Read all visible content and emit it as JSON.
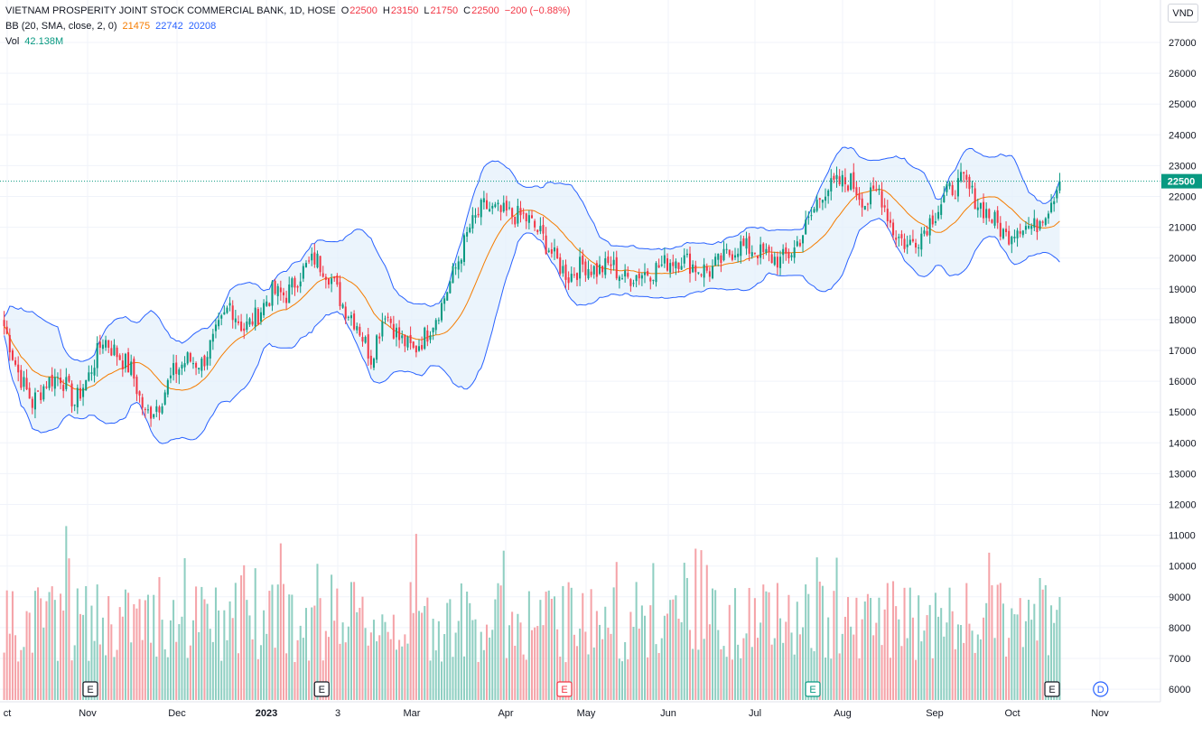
{
  "legend": {
    "symbol_line": "VIETNAM PROSPERITY JOINT STOCK COMMERCIAL BANK, 1D, HOSE",
    "o_label": "O",
    "o_value": "22500",
    "h_label": "H",
    "h_value": "23150",
    "l_label": "L",
    "l_value": "21750",
    "c_label": "C",
    "c_value": "22500",
    "change": "−200 (−0.88%)",
    "bb_label": "BB (20, SMA, close, 2, 0)",
    "bb_basis": "21475",
    "bb_upper": "22742",
    "bb_lower": "20208",
    "vol_label": "Vol",
    "vol_value": "42.138M"
  },
  "currency": "VND",
  "last_price_label": "22500",
  "colors": {
    "up": "#089981",
    "down": "#f23645",
    "basis": "#f57c00",
    "band": "#2962ff",
    "band_fill": "#e3f0fb",
    "vol_up": "#8fcfc2",
    "vol_down": "#f5a3a8"
  },
  "chart_data": {
    "type": "candlestick",
    "y_axis_ticks": [
      "27000",
      "26000",
      "25000",
      "24000",
      "23000",
      "22000",
      "21000",
      "20000",
      "19000",
      "18000",
      "17000",
      "16000",
      "15000",
      "14000",
      "13000",
      "12000",
      "11000",
      "10000",
      "9000",
      "8000",
      "7000",
      "6000"
    ],
    "x_axis_labels": [
      {
        "label": "ct",
        "bold": false
      },
      {
        "label": "Nov",
        "bold": false
      },
      {
        "label": "Dec",
        "bold": false
      },
      {
        "label": "2023",
        "bold": true
      },
      {
        "label": "3",
        "bold": false
      },
      {
        "label": "Mar",
        "bold": false
      },
      {
        "label": "Apr",
        "bold": false
      },
      {
        "label": "May",
        "bold": false
      },
      {
        "label": "Jun",
        "bold": false
      },
      {
        "label": "Jul",
        "bold": false
      },
      {
        "label": "Aug",
        "bold": false
      },
      {
        "label": "Sep",
        "bold": false
      },
      {
        "label": "Oct",
        "bold": false
      },
      {
        "label": "Nov",
        "bold": false
      }
    ],
    "last_price": 22500,
    "price_range": [
      13000,
      27000
    ],
    "close_anchors": [
      [
        0,
        17800
      ],
      [
        5,
        16300
      ],
      [
        10,
        15300
      ],
      [
        15,
        16000
      ],
      [
        20,
        16200
      ],
      [
        25,
        15300
      ],
      [
        30,
        16200
      ],
      [
        35,
        17400
      ],
      [
        40,
        16900
      ],
      [
        45,
        16400
      ],
      [
        50,
        14900
      ],
      [
        55,
        15300
      ],
      [
        60,
        16300
      ],
      [
        65,
        16700
      ],
      [
        70,
        16600
      ],
      [
        75,
        17500
      ],
      [
        80,
        18500
      ],
      [
        85,
        17700
      ],
      [
        90,
        18200
      ],
      [
        95,
        18900
      ],
      [
        100,
        18800
      ],
      [
        105,
        19500
      ],
      [
        110,
        20000
      ],
      [
        115,
        19500
      ],
      [
        120,
        18500
      ],
      [
        125,
        17900
      ],
      [
        130,
        16800
      ],
      [
        135,
        18300
      ],
      [
        140,
        17400
      ],
      [
        145,
        17000
      ],
      [
        150,
        17600
      ],
      [
        155,
        18500
      ],
      [
        160,
        19700
      ],
      [
        165,
        21000
      ],
      [
        170,
        21700
      ],
      [
        175,
        21500
      ],
      [
        180,
        21400
      ],
      [
        185,
        21300
      ],
      [
        190,
        20800
      ],
      [
        195,
        20000
      ],
      [
        200,
        19400
      ],
      [
        205,
        19800
      ],
      [
        210,
        19600
      ],
      [
        215,
        19800
      ],
      [
        220,
        19300
      ],
      [
        225,
        19500
      ],
      [
        230,
        19600
      ],
      [
        235,
        19900
      ],
      [
        240,
        20000
      ],
      [
        245,
        19700
      ],
      [
        250,
        19600
      ],
      [
        255,
        20000
      ],
      [
        260,
        20400
      ],
      [
        265,
        20300
      ],
      [
        270,
        20100
      ],
      [
        275,
        19900
      ],
      [
        280,
        20300
      ],
      [
        285,
        21200
      ],
      [
        290,
        22200
      ],
      [
        295,
        22400
      ],
      [
        300,
        22500
      ],
      [
        305,
        21800
      ],
      [
        310,
        22200
      ],
      [
        315,
        20900
      ],
      [
        320,
        20400
      ],
      [
        325,
        20800
      ],
      [
        330,
        21500
      ],
      [
        335,
        22200
      ],
      [
        340,
        22500
      ],
      [
        345,
        21800
      ],
      [
        350,
        21300
      ],
      [
        355,
        20700
      ],
      [
        360,
        21100
      ],
      [
        365,
        21000
      ],
      [
        370,
        21700
      ],
      [
        372,
        22100
      ],
      [
        374,
        22500
      ]
    ],
    "volume_units": "shares",
    "volume_range": [
      6000000,
      11500000
    ],
    "events": [
      {
        "label": "E",
        "position": 0.08,
        "color": "#131722"
      },
      {
        "label": "E",
        "position": 0.285,
        "color": "#131722"
      },
      {
        "label": "E",
        "position": 0.5,
        "color": "#f23645"
      },
      {
        "label": "E",
        "position": 0.72,
        "color": "#089981"
      },
      {
        "label": "E",
        "position": 0.932,
        "color": "#131722"
      },
      {
        "label": "D",
        "position": 0.975,
        "color": "#2962ff"
      }
    ]
  }
}
